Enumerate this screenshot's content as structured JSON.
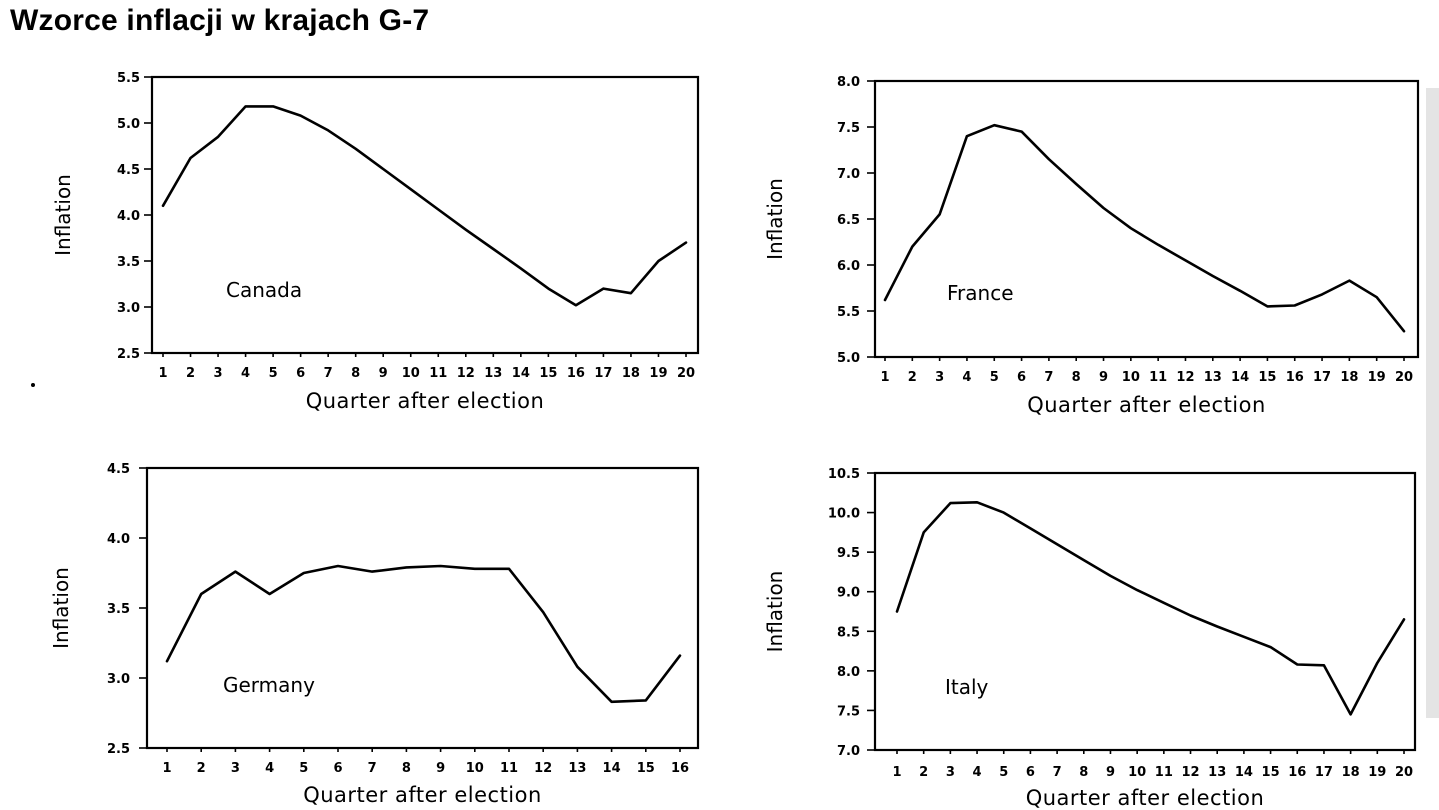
{
  "page": {
    "title": "Wzorce inflacji w krajach G-7"
  },
  "chart_data": [
    {
      "type": "line",
      "country_label": "Canada",
      "xlabel": "Quarter after election",
      "ylabel": "Inflation",
      "x": [
        1,
        2,
        3,
        4,
        5,
        6,
        7,
        8,
        9,
        10,
        11,
        12,
        13,
        14,
        15,
        16,
        17,
        18,
        19,
        20
      ],
      "x_tick_labels": [
        "1",
        "2",
        "3",
        "4",
        "5",
        "6",
        "7",
        "8",
        "9",
        "10",
        "11",
        "12",
        "13",
        "14",
        "15",
        "16",
        "17",
        "18",
        "19",
        "20"
      ],
      "values": [
        4.1,
        4.62,
        4.85,
        5.18,
        5.18,
        5.08,
        4.92,
        4.72,
        4.5,
        4.28,
        4.06,
        3.84,
        3.63,
        3.42,
        3.2,
        3.02,
        3.2,
        3.15,
        3.5,
        3.7
      ],
      "ylim": [
        2.5,
        5.5
      ],
      "y_ticks": [
        "2.5",
        "3.0",
        "3.5",
        "4.0",
        "4.5",
        "5.0",
        "5.5"
      ]
    },
    {
      "type": "line",
      "country_label": "France",
      "xlabel": "Quarter after election",
      "ylabel": "Inflation",
      "x": [
        1,
        2,
        3,
        4,
        5,
        6,
        7,
        8,
        9,
        10,
        11,
        12,
        13,
        14,
        15,
        16,
        17,
        18,
        19,
        20
      ],
      "x_tick_labels": [
        "1",
        "2",
        "3",
        "4",
        "5",
        "6",
        "7",
        "8",
        "9",
        "10",
        "11",
        "12",
        "13",
        "14",
        "15",
        "16",
        "17",
        "18",
        "19",
        "20"
      ],
      "values": [
        5.62,
        6.2,
        6.55,
        7.4,
        7.52,
        7.45,
        7.15,
        6.88,
        6.62,
        6.4,
        6.22,
        6.05,
        5.88,
        5.72,
        5.55,
        5.56,
        5.68,
        5.83,
        5.65,
        5.28
      ],
      "ylim": [
        5.0,
        8.0
      ],
      "y_ticks": [
        "5.0",
        "5.5",
        "6.0",
        "6.5",
        "7.0",
        "7.5",
        "8.0"
      ]
    },
    {
      "type": "line",
      "country_label": "Germany",
      "xlabel": "Quarter after election",
      "ylabel": "Inflation",
      "x": [
        1,
        2,
        3,
        4,
        5,
        6,
        7,
        8,
        9,
        10,
        11,
        12,
        13,
        14,
        15,
        16
      ],
      "x_tick_labels": [
        "1",
        "2",
        "3",
        "4",
        "5",
        "6",
        "7",
        "8",
        "9",
        "10",
        "11",
        "12",
        "13",
        "14",
        "15",
        "16"
      ],
      "values": [
        3.12,
        3.6,
        3.76,
        3.6,
        3.75,
        3.8,
        3.76,
        3.79,
        3.8,
        3.78,
        3.78,
        3.47,
        3.08,
        2.83,
        2.84,
        3.16
      ],
      "ylim": [
        2.5,
        4.5
      ],
      "y_ticks": [
        "2.5",
        "3.0",
        "3.5",
        "4.0",
        "4.5"
      ]
    },
    {
      "type": "line",
      "country_label": "Italy",
      "xlabel": "Quarter after election",
      "ylabel": "Inflation",
      "x": [
        1,
        2,
        3,
        4,
        5,
        6,
        7,
        8,
        9,
        10,
        11,
        12,
        13,
        14,
        15,
        16,
        17,
        18,
        19,
        20
      ],
      "x_tick_labels": [
        "1",
        "2",
        "3",
        "4",
        "5",
        "6",
        "7",
        "8",
        "9",
        "10",
        "11",
        "12",
        "13",
        "14",
        "15",
        "16",
        "17",
        "18",
        "19",
        "20"
      ],
      "values": [
        8.75,
        9.75,
        10.12,
        10.13,
        10.0,
        9.8,
        9.6,
        9.4,
        9.2,
        9.02,
        8.86,
        8.7,
        8.56,
        8.43,
        8.3,
        8.08,
        8.07,
        7.45,
        8.1,
        8.65
      ],
      "ylim": [
        7.0,
        10.5
      ],
      "y_ticks": [
        "7.0",
        "7.5",
        "8.0",
        "8.5",
        "9.0",
        "9.5",
        "10.0",
        "10.5"
      ]
    }
  ]
}
